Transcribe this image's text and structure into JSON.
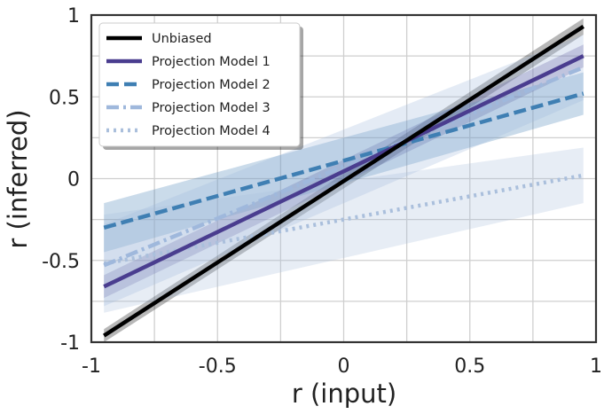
{
  "chart_data": {
    "type": "line",
    "xlabel": "r (input)",
    "ylabel": "r (inferred)",
    "xlim": [
      -1,
      1
    ],
    "ylim": [
      -1,
      1
    ],
    "xticks": [
      -1,
      -0.75,
      -0.5,
      -0.25,
      0,
      0.25,
      0.5,
      0.75,
      1
    ],
    "yticks": [
      -1,
      -0.75,
      -0.5,
      -0.25,
      0,
      0.25,
      0.5,
      0.75,
      1
    ],
    "xtick_labels": [
      "-1",
      "",
      "-0.5",
      "",
      "0",
      "",
      "0.5",
      "",
      "1"
    ],
    "ytick_labels": [
      "-1",
      "",
      "-0.5",
      "",
      "0",
      "",
      "0.5",
      "",
      "1"
    ],
    "grid": true,
    "legend_position": "top-left",
    "x": [
      -0.95,
      0.95
    ],
    "series": [
      {
        "name": "Unbiased",
        "color": "#000000",
        "dash": "solid",
        "values": [
          -0.96,
          0.93
        ],
        "band": [
          0.04,
          0.05
        ]
      },
      {
        "name": "Projection Model 1",
        "color": "#4a3d8f",
        "dash": "solid",
        "values": [
          -0.66,
          0.75
        ],
        "band": [
          0.07,
          0.07
        ]
      },
      {
        "name": "Projection Model 2",
        "color": "#3f7fb3",
        "dash": "dashed",
        "values": [
          -0.3,
          0.52
        ],
        "band": [
          0.15,
          0.13
        ]
      },
      {
        "name": "Projection Model 3",
        "color": "#9fb8dc",
        "dash": "dashdot",
        "values": [
          -0.53,
          0.68
        ],
        "band": [
          0.25,
          0.2
        ]
      },
      {
        "name": "Projection Model 4",
        "color": "#aabfdc",
        "dash": "dotted",
        "values": [
          -0.52,
          0.02
        ],
        "band": [
          0.3,
          0.17
        ]
      }
    ]
  }
}
